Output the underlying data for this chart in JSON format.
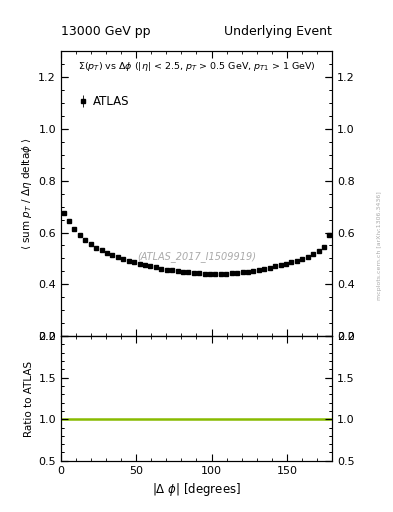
{
  "title_left": "13000 GeV pp",
  "title_right": "Underlying Event",
  "annotation": "$\\Sigma(p_{T})$ vs $\\Delta\\phi$ ($|\\eta|$ < 2.5, $p_{T}$ > 0.5 GeV, $p_{T1}$ > 1 GeV)",
  "inspire_label": "(ATLAS_2017_I1509919)",
  "ylabel_main": "$\\langle$ sum $p_{T}$ / $\\Delta\\eta$ delta$\\phi$ $\\rangle$",
  "ylabel_ratio": "Ratio to ATLAS",
  "xlabel": "$|\\Delta\\ \\phi|$ [degrees]",
  "legend_label": "ATLAS",
  "xlim": [
    0,
    180
  ],
  "ylim_main": [
    0.2,
    1.3
  ],
  "ylim_ratio": [
    0.5,
    2.0
  ],
  "yticks_main": [
    0.2,
    0.4,
    0.6,
    0.8,
    1.0,
    1.2
  ],
  "yticks_ratio": [
    0.5,
    1.0,
    1.5,
    2.0
  ],
  "xticks": [
    0,
    50,
    100,
    150
  ],
  "data_color": "#000000",
  "ratio_line_color": "#88bb00",
  "watermark_color": "#aaaaaa",
  "watermark_text": "mcplots.cern.ch [arXiv:1306.3436]",
  "data_x": [
    1.8,
    5.4,
    9.0,
    12.6,
    16.2,
    19.8,
    23.4,
    27.0,
    30.6,
    34.2,
    37.8,
    41.4,
    45.0,
    48.6,
    52.2,
    55.8,
    59.4,
    63.0,
    66.6,
    70.2,
    73.8,
    77.4,
    81.0,
    84.6,
    88.2,
    91.8,
    95.4,
    99.0,
    102.6,
    106.2,
    109.8,
    113.4,
    117.0,
    120.6,
    124.2,
    127.8,
    131.4,
    135.0,
    138.6,
    142.2,
    145.8,
    149.4,
    153.0,
    156.6,
    160.2,
    163.8,
    167.4,
    171.0,
    174.6,
    178.2
  ],
  "data_y": [
    0.675,
    0.645,
    0.615,
    0.59,
    0.57,
    0.555,
    0.542,
    0.531,
    0.521,
    0.512,
    0.504,
    0.497,
    0.491,
    0.485,
    0.479,
    0.474,
    0.469,
    0.465,
    0.461,
    0.457,
    0.454,
    0.451,
    0.448,
    0.446,
    0.444,
    0.442,
    0.441,
    0.44,
    0.44,
    0.44,
    0.441,
    0.442,
    0.444,
    0.446,
    0.449,
    0.452,
    0.456,
    0.46,
    0.464,
    0.469,
    0.474,
    0.48,
    0.486,
    0.492,
    0.499,
    0.507,
    0.516,
    0.527,
    0.545,
    0.59
  ],
  "data_yerr": [
    0.005,
    0.004,
    0.004,
    0.003,
    0.003,
    0.003,
    0.003,
    0.002,
    0.002,
    0.002,
    0.002,
    0.002,
    0.002,
    0.002,
    0.002,
    0.002,
    0.002,
    0.002,
    0.002,
    0.002,
    0.002,
    0.002,
    0.002,
    0.002,
    0.002,
    0.002,
    0.002,
    0.002,
    0.002,
    0.002,
    0.002,
    0.002,
    0.002,
    0.002,
    0.002,
    0.002,
    0.002,
    0.002,
    0.002,
    0.002,
    0.002,
    0.002,
    0.002,
    0.002,
    0.002,
    0.003,
    0.003,
    0.003,
    0.004,
    0.005
  ]
}
